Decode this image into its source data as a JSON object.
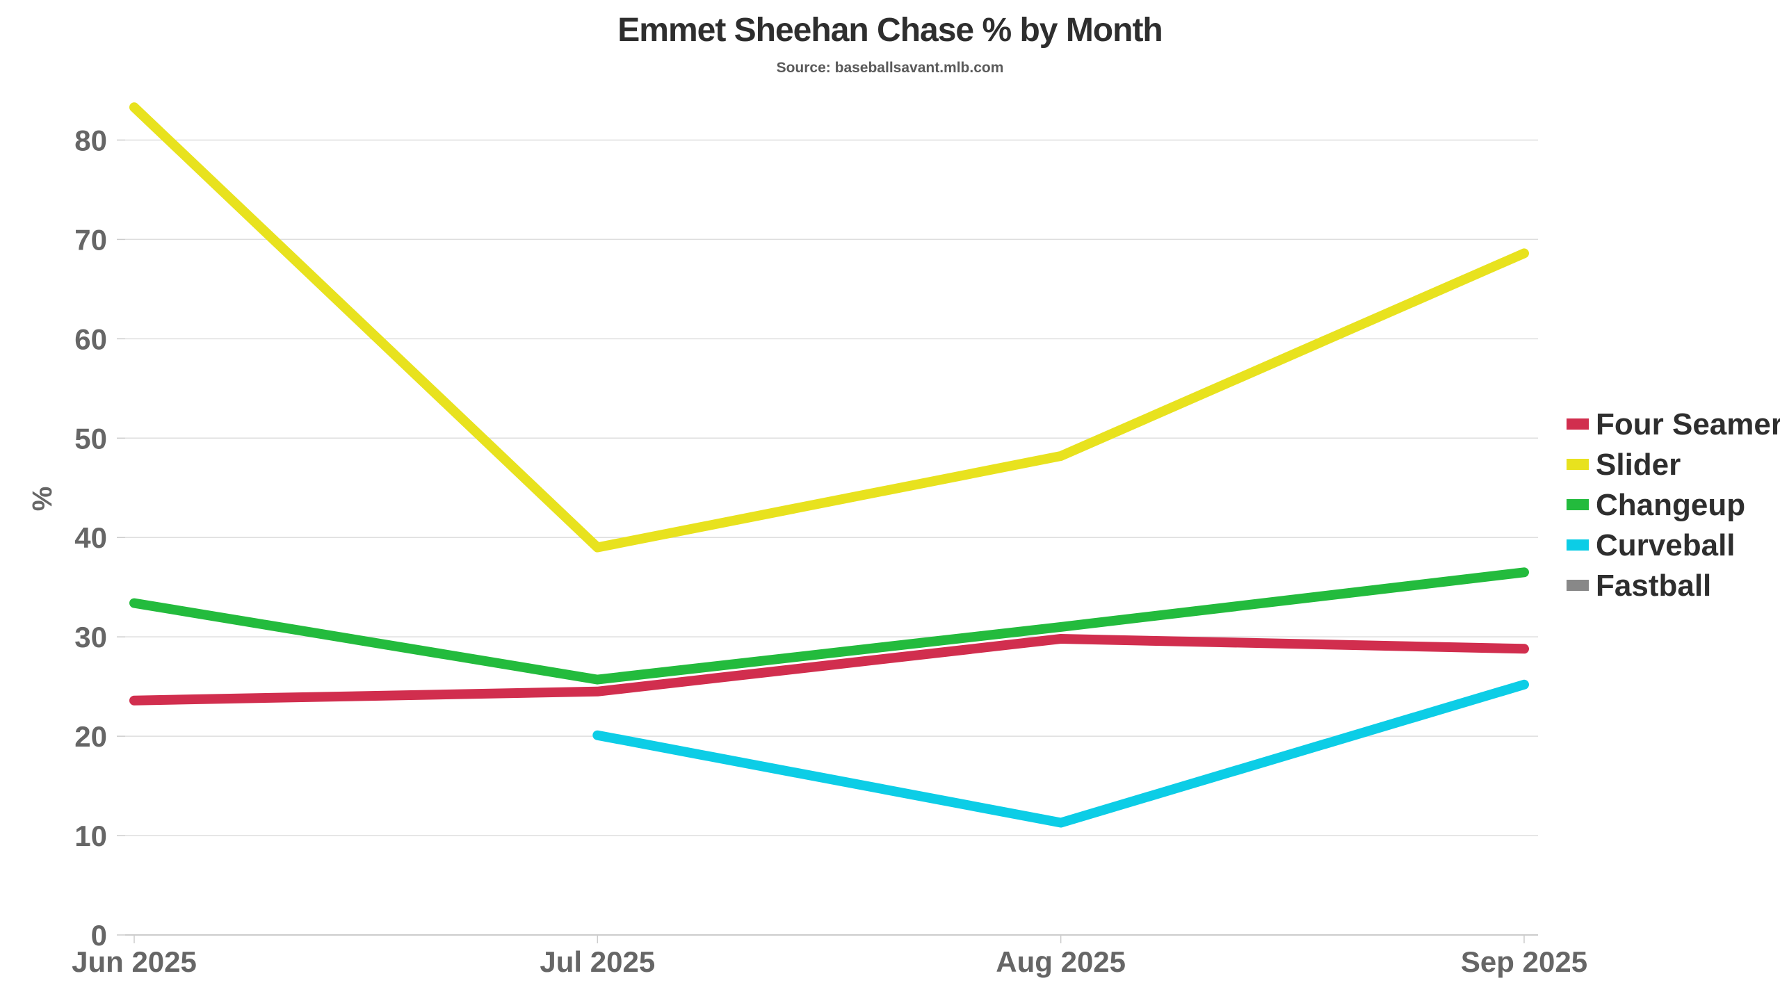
{
  "chart_data": {
    "type": "line",
    "title": "Emmet Sheehan Chase % by Month",
    "subtitle": "Source: baseballsavant.mlb.com",
    "xlabel": "",
    "ylabel": "%",
    "categories": [
      "Jun 2025",
      "Jul 2025",
      "Aug 2025",
      "Sep 2025"
    ],
    "ylim": [
      0,
      85
    ],
    "yticks": [
      0,
      10,
      20,
      30,
      40,
      50,
      60,
      70,
      80
    ],
    "grid": true,
    "legend_position": "right",
    "series": [
      {
        "name": "Four Seamer",
        "color": "#d12e4e",
        "values": [
          23.6,
          24.5,
          29.8,
          28.8
        ]
      },
      {
        "name": "Slider",
        "color": "#e8e21e",
        "values": [
          83.3,
          39.0,
          48.2,
          68.6
        ]
      },
      {
        "name": "Changeup",
        "color": "#23bb3d",
        "values": [
          33.4,
          25.7,
          31.0,
          36.5
        ]
      },
      {
        "name": "Curveball",
        "color": "#0ccde6",
        "values": [
          null,
          20.1,
          11.3,
          25.2
        ]
      },
      {
        "name": "Fastball",
        "color": "#888888",
        "values": [
          null,
          null,
          null,
          null
        ]
      }
    ]
  }
}
